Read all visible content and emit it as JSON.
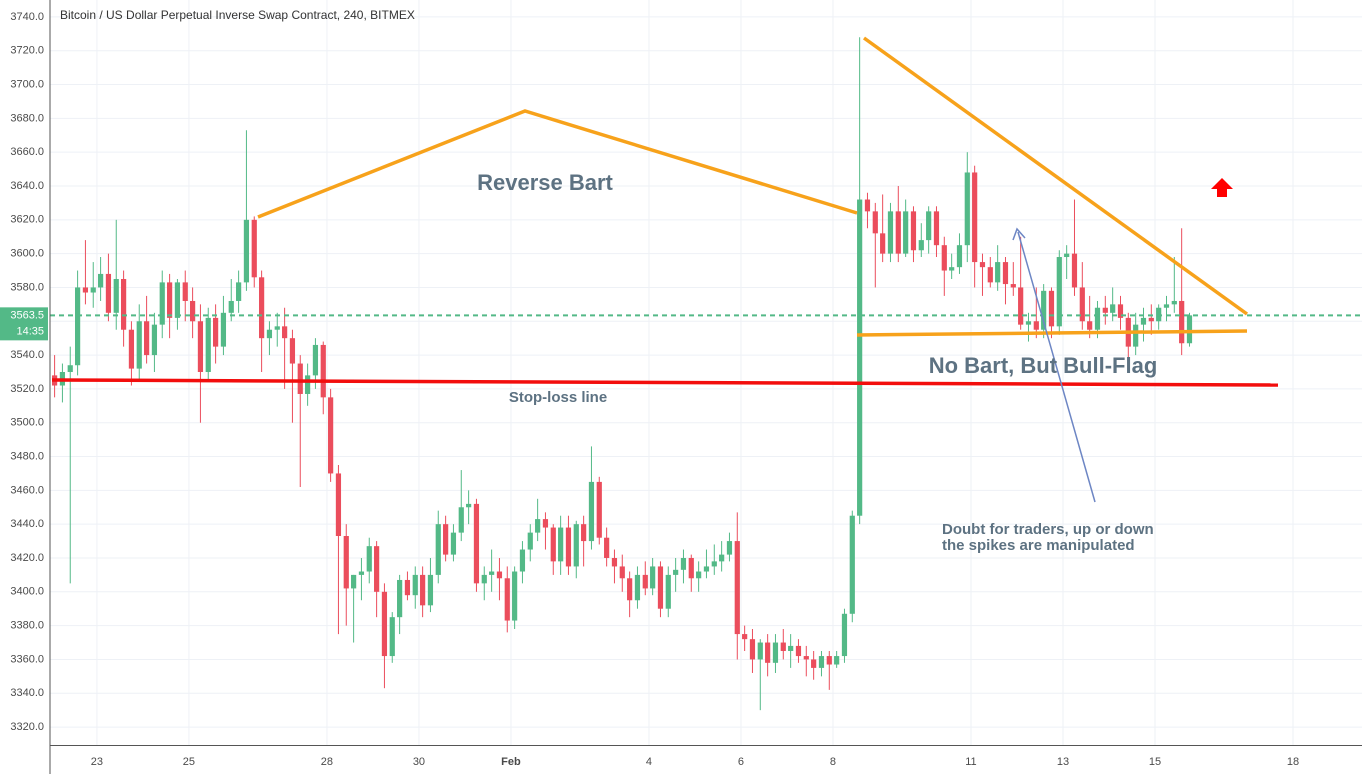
{
  "chart_data": {
    "type": "candlestick",
    "title": "Bitcoin / US Dollar Perpetual Inverse Swap Contract, 240, BITMEX",
    "up_color": "#53b987",
    "down_color": "#eb4d5c",
    "ylim": [
      3309.4,
      3750
    ],
    "xlim": [
      21.98,
      50.5
    ],
    "grid": true,
    "yticks": [
      {
        "value": 3320,
        "label": "3320.0"
      },
      {
        "value": 3340,
        "label": "3340.0"
      },
      {
        "value": 3360,
        "label": "3360.0"
      },
      {
        "value": 3380,
        "label": "3380.0"
      },
      {
        "value": 3400,
        "label": "3400.0"
      },
      {
        "value": 3420,
        "label": "3420.0"
      },
      {
        "value": 3440,
        "label": "3440.0"
      },
      {
        "value": 3460,
        "label": "3460.0"
      },
      {
        "value": 3480,
        "label": "3480.0"
      },
      {
        "value": 3500,
        "label": "3500.0"
      },
      {
        "value": 3520,
        "label": "3520.0"
      },
      {
        "value": 3540,
        "label": "3540.0"
      },
      {
        "value": 3560,
        "label": "3560.0"
      },
      {
        "value": 3580,
        "label": "3580.0"
      },
      {
        "value": 3600,
        "label": "3600.0"
      },
      {
        "value": 3620,
        "label": "3620.0"
      },
      {
        "value": 3640,
        "label": "3640.0"
      },
      {
        "value": 3660,
        "label": "3660.0"
      },
      {
        "value": 3680,
        "label": "3680.0"
      },
      {
        "value": 3700,
        "label": "3700.0"
      },
      {
        "value": 3720,
        "label": "3720.0"
      },
      {
        "value": 3740,
        "label": "3740.0"
      }
    ],
    "xticks": [
      23,
      25,
      28,
      30,
      {
        "value": 32,
        "label": "Feb"
      },
      {
        "value": 35,
        "label": "4"
      },
      {
        "value": 37,
        "label": "6"
      },
      {
        "value": 39,
        "label": "8"
      },
      {
        "value": 42,
        "label": "11"
      },
      {
        "value": 44,
        "label": "13"
      },
      {
        "value": 46,
        "label": "15"
      },
      {
        "value": 49,
        "label": "18"
      }
    ],
    "countdown": "14:35",
    "annotations": {
      "reverse": "Reverse Bart",
      "flag": "No Bart, But Bull-Flag",
      "stop": "Stop-loss line",
      "doubt1": "Doubt for traders, up or down",
      "doubt2": "the spikes are manipulated"
    },
    "x": [
      22.08,
      22.25,
      22.42,
      22.58,
      22.75,
      22.92,
      23.08,
      23.25,
      23.42,
      23.58,
      23.75,
      23.92,
      24.08,
      24.25,
      24.42,
      24.58,
      24.75,
      24.92,
      25.08,
      25.25,
      25.42,
      25.58,
      25.75,
      25.92,
      26.08,
      26.25,
      26.42,
      26.58,
      26.75,
      26.92,
      27.08,
      27.25,
      27.42,
      27.58,
      27.75,
      27.92,
      28.08,
      28.25,
      28.42,
      28.58,
      28.75,
      28.92,
      29.08,
      29.25,
      29.42,
      29.58,
      29.75,
      29.92,
      30.08,
      30.25,
      30.42,
      30.58,
      30.75,
      30.92,
      31.08,
      31.25,
      31.42,
      31.58,
      31.75,
      31.92,
      32.08,
      32.25,
      32.42,
      32.58,
      32.75,
      32.92,
      33.08,
      33.25,
      33.42,
      33.58,
      33.75,
      33.92,
      34.08,
      34.25,
      34.42,
      34.58,
      34.75,
      34.92,
      35.08,
      35.25,
      35.42,
      35.58,
      35.75,
      35.92,
      36.08,
      36.25,
      36.42,
      36.58,
      36.75,
      36.92,
      37.08,
      37.25,
      37.42,
      37.58,
      37.75,
      37.92,
      38.08,
      38.25,
      38.42,
      38.58,
      38.75,
      38.92,
      39.08,
      39.25,
      39.42,
      39.58,
      39.75,
      39.92,
      40.08,
      40.25,
      40.42,
      40.58,
      40.75,
      40.92,
      41.08,
      41.25,
      41.42,
      41.58,
      41.75,
      41.92,
      42.08,
      42.25,
      42.42,
      42.58,
      42.75,
      42.92,
      43.08,
      43.25,
      43.42,
      43.58,
      43.75,
      43.92,
      44.08,
      44.25,
      44.42,
      44.58,
      44.75,
      44.92,
      45.08,
      45.25,
      45.42,
      45.58,
      45.75,
      45.92,
      46.08,
      46.25,
      46.42,
      46.58,
      46.75
    ],
    "ohlc": [
      [
        3528,
        3540,
        3515,
        3522
      ],
      [
        3522,
        3535,
        3512,
        3530
      ],
      [
        3530,
        3545,
        3405,
        3534
      ],
      [
        3534,
        3590,
        3528,
        3580
      ],
      [
        3580,
        3608,
        3570,
        3577
      ],
      [
        3577,
        3595,
        3568,
        3580
      ],
      [
        3580,
        3598,
        3572,
        3588
      ],
      [
        3588,
        3600,
        3560,
        3565
      ],
      [
        3565,
        3620,
        3555,
        3585
      ],
      [
        3585,
        3590,
        3545,
        3555
      ],
      [
        3555,
        3560,
        3522,
        3532
      ],
      [
        3532,
        3570,
        3525,
        3560
      ],
      [
        3560,
        3575,
        3535,
        3540
      ],
      [
        3540,
        3565,
        3530,
        3558
      ],
      [
        3558,
        3590,
        3550,
        3583
      ],
      [
        3583,
        3588,
        3550,
        3562
      ],
      [
        3562,
        3585,
        3555,
        3583
      ],
      [
        3583,
        3590,
        3560,
        3572
      ],
      [
        3572,
        3580,
        3550,
        3560
      ],
      [
        3560,
        3570,
        3500,
        3530
      ],
      [
        3530,
        3568,
        3525,
        3562
      ],
      [
        3562,
        3570,
        3535,
        3545
      ],
      [
        3545,
        3575,
        3540,
        3565
      ],
      [
        3565,
        3585,
        3560,
        3572
      ],
      [
        3572,
        3590,
        3565,
        3583
      ],
      [
        3583,
        3673,
        3578,
        3620
      ],
      [
        3620,
        3622,
        3580,
        3586
      ],
      [
        3586,
        3590,
        3530,
        3550
      ],
      [
        3550,
        3560,
        3540,
        3555
      ],
      [
        3555,
        3565,
        3545,
        3557
      ],
      [
        3557,
        3568,
        3520,
        3550
      ],
      [
        3550,
        3555,
        3500,
        3535
      ],
      [
        3535,
        3540,
        3462,
        3517
      ],
      [
        3517,
        3535,
        3510,
        3528
      ],
      [
        3528,
        3550,
        3520,
        3546
      ],
      [
        3546,
        3548,
        3505,
        3515
      ],
      [
        3515,
        3520,
        3465,
        3470
      ],
      [
        3470,
        3475,
        3375,
        3433
      ],
      [
        3433,
        3440,
        3380,
        3402
      ],
      [
        3402,
        3410,
        3370,
        3410
      ],
      [
        3410,
        3420,
        3395,
        3412
      ],
      [
        3412,
        3432,
        3405,
        3427
      ],
      [
        3427,
        3430,
        3385,
        3400
      ],
      [
        3400,
        3405,
        3343,
        3362
      ],
      [
        3362,
        3388,
        3358,
        3385
      ],
      [
        3385,
        3410,
        3375,
        3407
      ],
      [
        3407,
        3412,
        3395,
        3398
      ],
      [
        3398,
        3415,
        3390,
        3410
      ],
      [
        3410,
        3415,
        3385,
        3392
      ],
      [
        3392,
        3420,
        3388,
        3410
      ],
      [
        3410,
        3448,
        3405,
        3440
      ],
      [
        3440,
        3445,
        3418,
        3422
      ],
      [
        3422,
        3440,
        3418,
        3435
      ],
      [
        3435,
        3472,
        3430,
        3450
      ],
      [
        3450,
        3460,
        3440,
        3452
      ],
      [
        3452,
        3455,
        3400,
        3405
      ],
      [
        3405,
        3415,
        3395,
        3410
      ],
      [
        3410,
        3425,
        3400,
        3412
      ],
      [
        3412,
        3420,
        3395,
        3408
      ],
      [
        3408,
        3415,
        3376,
        3383
      ],
      [
        3383,
        3415,
        3378,
        3412
      ],
      [
        3412,
        3430,
        3405,
        3425
      ],
      [
        3425,
        3440,
        3418,
        3435
      ],
      [
        3435,
        3455,
        3430,
        3443
      ],
      [
        3443,
        3447,
        3425,
        3438
      ],
      [
        3438,
        3440,
        3410,
        3418
      ],
      [
        3418,
        3445,
        3410,
        3438
      ],
      [
        3438,
        3445,
        3410,
        3415
      ],
      [
        3415,
        3442,
        3408,
        3440
      ],
      [
        3440,
        3445,
        3415,
        3430
      ],
      [
        3430,
        3486,
        3425,
        3465
      ],
      [
        3465,
        3468,
        3428,
        3432
      ],
      [
        3432,
        3438,
        3415,
        3420
      ],
      [
        3420,
        3425,
        3405,
        3415
      ],
      [
        3415,
        3422,
        3400,
        3408
      ],
      [
        3408,
        3412,
        3385,
        3395
      ],
      [
        3395,
        3415,
        3390,
        3410
      ],
      [
        3410,
        3418,
        3398,
        3402
      ],
      [
        3402,
        3420,
        3398,
        3415
      ],
      [
        3415,
        3418,
        3385,
        3390
      ],
      [
        3390,
        3415,
        3385,
        3410
      ],
      [
        3410,
        3420,
        3400,
        3413
      ],
      [
        3413,
        3425,
        3405,
        3420
      ],
      [
        3420,
        3422,
        3400,
        3408
      ],
      [
        3408,
        3418,
        3400,
        3412
      ],
      [
        3412,
        3425,
        3408,
        3415
      ],
      [
        3415,
        3428,
        3410,
        3418
      ],
      [
        3418,
        3430,
        3412,
        3422
      ],
      [
        3422,
        3435,
        3418,
        3430
      ],
      [
        3430,
        3447,
        3360,
        3375
      ],
      [
        3375,
        3380,
        3365,
        3372
      ],
      [
        3372,
        3378,
        3352,
        3360
      ],
      [
        3360,
        3372,
        3330,
        3370
      ],
      [
        3370,
        3375,
        3350,
        3358
      ],
      [
        3358,
        3375,
        3352,
        3370
      ],
      [
        3370,
        3378,
        3360,
        3365
      ],
      [
        3365,
        3375,
        3355,
        3368
      ],
      [
        3368,
        3372,
        3358,
        3362
      ],
      [
        3362,
        3368,
        3350,
        3360
      ],
      [
        3360,
        3365,
        3348,
        3355
      ],
      [
        3355,
        3365,
        3350,
        3362
      ],
      [
        3362,
        3365,
        3342,
        3357
      ],
      [
        3357,
        3365,
        3355,
        3362
      ],
      [
        3362,
        3390,
        3358,
        3387
      ],
      [
        3387,
        3448,
        3382,
        3445
      ],
      [
        3445,
        3728,
        3440,
        3632
      ],
      [
        3632,
        3636,
        3615,
        3625
      ],
      [
        3625,
        3630,
        3580,
        3612
      ],
      [
        3612,
        3635,
        3595,
        3600
      ],
      [
        3600,
        3630,
        3595,
        3625
      ],
      [
        3625,
        3640,
        3595,
        3600
      ],
      [
        3600,
        3632,
        3598,
        3625
      ],
      [
        3625,
        3628,
        3595,
        3602
      ],
      [
        3602,
        3618,
        3598,
        3608
      ],
      [
        3608,
        3628,
        3600,
        3625
      ],
      [
        3625,
        3628,
        3598,
        3605
      ],
      [
        3605,
        3610,
        3575,
        3590
      ],
      [
        3590,
        3600,
        3585,
        3592
      ],
      [
        3592,
        3612,
        3588,
        3605
      ],
      [
        3605,
        3660,
        3595,
        3648
      ],
      [
        3648,
        3652,
        3580,
        3595
      ],
      [
        3595,
        3600,
        3575,
        3592
      ],
      [
        3592,
        3598,
        3580,
        3583
      ],
      [
        3583,
        3605,
        3578,
        3595
      ],
      [
        3595,
        3598,
        3570,
        3582
      ],
      [
        3582,
        3595,
        3575,
        3580
      ],
      [
        3580,
        3610,
        3555,
        3558
      ],
      [
        3558,
        3565,
        3548,
        3560
      ],
      [
        3560,
        3580,
        3550,
        3555
      ],
      [
        3555,
        3582,
        3550,
        3578
      ],
      [
        3578,
        3580,
        3550,
        3557
      ],
      [
        3557,
        3602,
        3552,
        3598
      ],
      [
        3598,
        3605,
        3585,
        3600
      ],
      [
        3600,
        3632,
        3575,
        3580
      ],
      [
        3580,
        3595,
        3555,
        3560
      ],
      [
        3560,
        3575,
        3550,
        3555
      ],
      [
        3555,
        3572,
        3550,
        3568
      ],
      [
        3568,
        3575,
        3558,
        3565
      ],
      [
        3565,
        3580,
        3560,
        3570
      ],
      [
        3570,
        3575,
        3555,
        3562
      ],
      [
        3562,
        3565,
        3535,
        3545
      ],
      [
        3545,
        3565,
        3540,
        3558
      ],
      [
        3558,
        3568,
        3548,
        3562
      ],
      [
        3562,
        3570,
        3552,
        3560
      ],
      [
        3560,
        3570,
        3555,
        3568
      ],
      [
        3568,
        3575,
        3560,
        3570
      ],
      [
        3570,
        3598,
        3565,
        3572
      ],
      [
        3572,
        3615,
        3540,
        3547
      ],
      [
        3547,
        3565,
        3545,
        3563.5
      ]
    ]
  }
}
